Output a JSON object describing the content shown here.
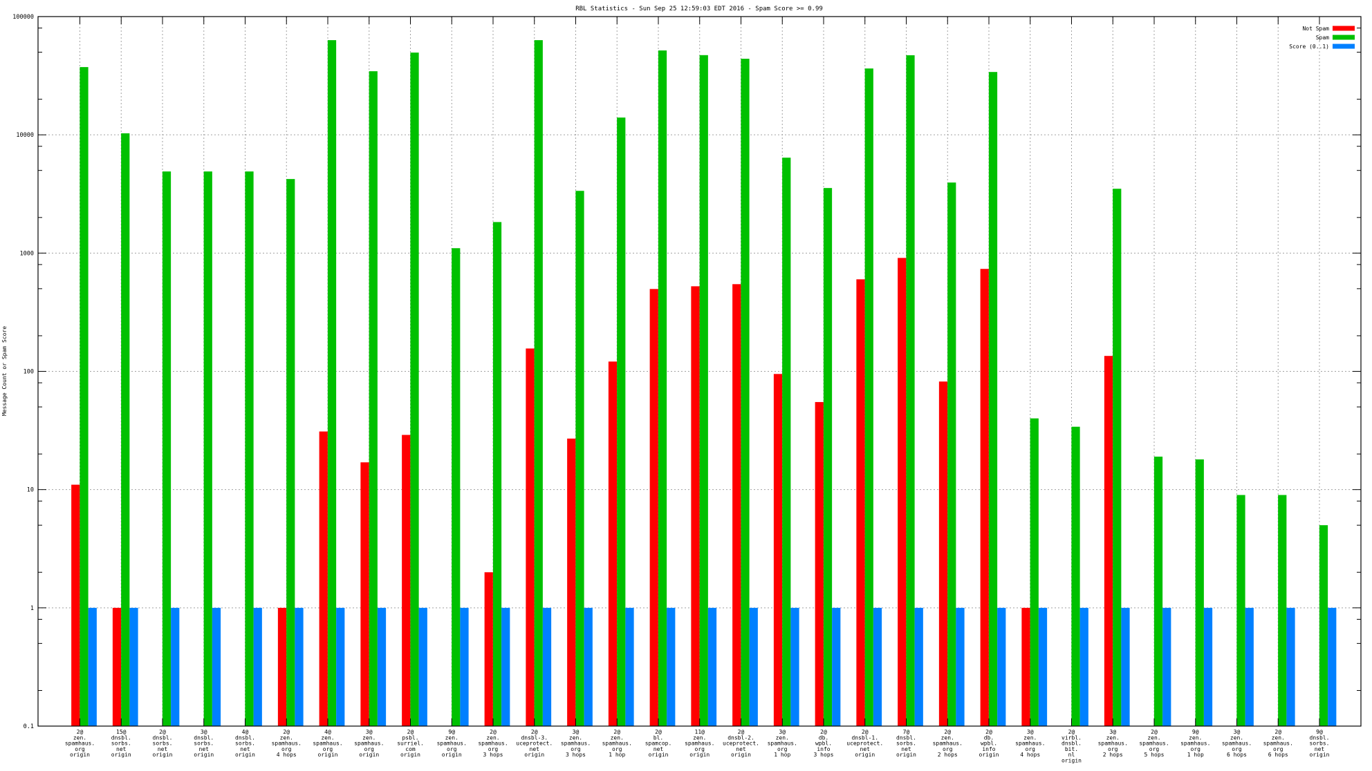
{
  "chart_data": {
    "type": "bar",
    "title": "RBL Statistics - Sun Sep 25 12:59:03 EDT 2016 - Spam Score >= 0.99",
    "xlabel": "",
    "ylabel": "Message Count or Spam Score",
    "yscale": "log",
    "ylim": [
      0.1,
      100000
    ],
    "yticks": [
      "100000",
      "10000",
      "1000",
      "100",
      "10",
      "1",
      "0.1"
    ],
    "grid": true,
    "legend_position": "top-right",
    "categories": [
      [
        "2@",
        "zen.",
        "spamhaus.",
        "org",
        "origin"
      ],
      [
        "15@",
        "dnsbl.",
        "sorbs.",
        "net",
        "origin"
      ],
      [
        "2@",
        "dnsbl.",
        "sorbs.",
        "net",
        "origin"
      ],
      [
        "3@",
        "dnsbl.",
        "sorbs.",
        "net",
        "origin"
      ],
      [
        "4@",
        "dnsbl.",
        "sorbs.",
        "net",
        "origin"
      ],
      [
        "2@",
        "zen.",
        "spamhaus.",
        "org",
        "4 hops"
      ],
      [
        "4@",
        "zen.",
        "spamhaus.",
        "org",
        "origin"
      ],
      [
        "3@",
        "zen.",
        "spamhaus.",
        "org",
        "origin"
      ],
      [
        "2@",
        "psbl.",
        "surriel.",
        "com",
        "origin"
      ],
      [
        "9@",
        "zen.",
        "spamhaus.",
        "org",
        "origin"
      ],
      [
        "2@",
        "zen.",
        "spamhaus.",
        "org",
        "3 hops"
      ],
      [
        "2@",
        "dnsbl-3.",
        "uceprotect.",
        "net",
        "origin"
      ],
      [
        "3@",
        "zen.",
        "spamhaus.",
        "org",
        "3 hops"
      ],
      [
        "2@",
        "zen.",
        "spamhaus.",
        "org",
        "1 hop"
      ],
      [
        "2@",
        "bl.",
        "spamcop.",
        "net",
        "origin"
      ],
      [
        "11@",
        "zen.",
        "spamhaus.",
        "org",
        "origin"
      ],
      [
        "2@",
        "dnsbl-2.",
        "uceprotect.",
        "net",
        "origin"
      ],
      [
        "3@",
        "zen.",
        "spamhaus.",
        "org",
        "1 hop"
      ],
      [
        "2@",
        "db.",
        "wpbl.",
        "info",
        "3 hops"
      ],
      [
        "2@",
        "dnsbl-1.",
        "uceprotect.",
        "net",
        "origin"
      ],
      [
        "7@",
        "dnsbl.",
        "sorbs.",
        "net",
        "origin"
      ],
      [
        "2@",
        "zen.",
        "spamhaus.",
        "org",
        "2 hops"
      ],
      [
        "2@",
        "db.",
        "wpbl.",
        "info",
        "origin"
      ],
      [
        "3@",
        "zen.",
        "spamhaus.",
        "org",
        "4 hops"
      ],
      [
        "2@",
        "virbl.",
        "dnsbl.",
        "bit.",
        "nl",
        "origin"
      ],
      [
        "3@",
        "zen.",
        "spamhaus.",
        "org",
        "2 hops"
      ],
      [
        "2@",
        "zen.",
        "spamhaus.",
        "org",
        "5 hops"
      ],
      [
        "9@",
        "zen.",
        "spamhaus.",
        "org",
        "1 hop"
      ],
      [
        "3@",
        "zen.",
        "spamhaus.",
        "org",
        "6 hops"
      ],
      [
        "2@",
        "zen.",
        "spamhaus.",
        "org",
        "6 hops"
      ],
      [
        "9@",
        "dnsbl.",
        "sorbs.",
        "net",
        "origin"
      ]
    ],
    "series": [
      {
        "name": "Not Spam",
        "color": "#ff0000",
        "values": [
          11,
          1,
          null,
          null,
          null,
          1,
          31,
          17,
          29,
          null,
          2,
          156,
          27,
          121,
          497,
          524,
          546,
          95,
          55,
          600,
          910,
          82,
          735,
          1,
          null,
          135,
          null,
          null,
          null,
          null,
          null
        ]
      },
      {
        "name": "Spam",
        "color": "#00c000",
        "values": [
          37400,
          10300,
          4900,
          4900,
          4900,
          4230,
          63200,
          34500,
          49600,
          1100,
          1830,
          63200,
          3360,
          14000,
          51700,
          47200,
          44000,
          6410,
          3550,
          36400,
          47100,
          3950,
          34000,
          40,
          34,
          3500,
          19,
          18,
          9,
          9,
          5
        ]
      },
      {
        "name": "Score (0..1)",
        "color": "#0080ff",
        "values": [
          1,
          1,
          1,
          1,
          1,
          1,
          1,
          1,
          1,
          1,
          1,
          1,
          1,
          1,
          1,
          1,
          1,
          1,
          1,
          1,
          1,
          1,
          1,
          1,
          1,
          1,
          1,
          1,
          1,
          1,
          1
        ]
      }
    ]
  }
}
